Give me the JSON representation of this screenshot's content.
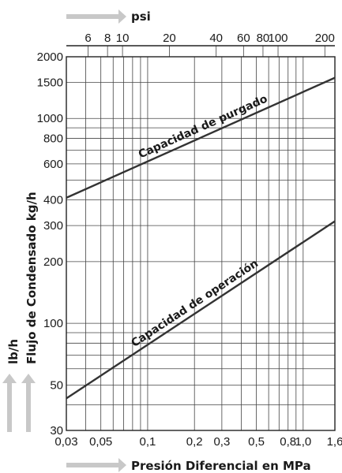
{
  "chart_data": {
    "type": "line",
    "x_scale": "log",
    "y_scale": "log",
    "xlim": [
      0.03,
      1.6
    ],
    "ylim": [
      30,
      2000
    ],
    "xlabel": "Presión Diferencial en MPa",
    "ylabel": "Flujo de Condensado kg/h",
    "ylabel_secondary": "lb/h",
    "top_axis_label": "psi",
    "x_ticks": [
      0.03,
      0.05,
      0.1,
      0.2,
      0.3,
      0.5,
      0.8,
      1.0,
      1.6
    ],
    "x_tick_labels": [
      "0,03",
      "0,05",
      "0,1",
      "0,2",
      "0,3",
      "0,5",
      "0,8",
      "1,0",
      "1,6"
    ],
    "x_grid_minor": [
      0.04,
      0.06,
      0.07,
      0.08,
      0.09,
      0.4,
      0.6,
      0.7,
      0.9
    ],
    "y_ticks": [
      30,
      50,
      100,
      200,
      300,
      400,
      600,
      800,
      1000,
      1500,
      2000
    ],
    "y_tick_labels": [
      "30",
      "50",
      "100",
      "200",
      "300",
      "400",
      "600",
      "800",
      "1000",
      "1500",
      "2000"
    ],
    "y_grid_minor": [
      40,
      60,
      70,
      80,
      90,
      500,
      700,
      900
    ],
    "top_ticks_mpa": [
      0.0414,
      0.0552,
      0.0689,
      0.1379,
      0.2758,
      0.4137,
      0.5516,
      0.6895,
      1.379
    ],
    "top_tick_labels": [
      "6",
      "8",
      "10",
      "20",
      "40",
      "60",
      "80",
      "100",
      "200"
    ],
    "grid": true,
    "series": [
      {
        "name": "Capacidad de purgado",
        "x": [
          0.03,
          1.6
        ],
        "y": [
          410,
          1580
        ]
      },
      {
        "name": "Capacidad de operación",
        "x": [
          0.03,
          1.6
        ],
        "y": [
          43,
          315
        ]
      }
    ],
    "line_color": "#333333"
  }
}
